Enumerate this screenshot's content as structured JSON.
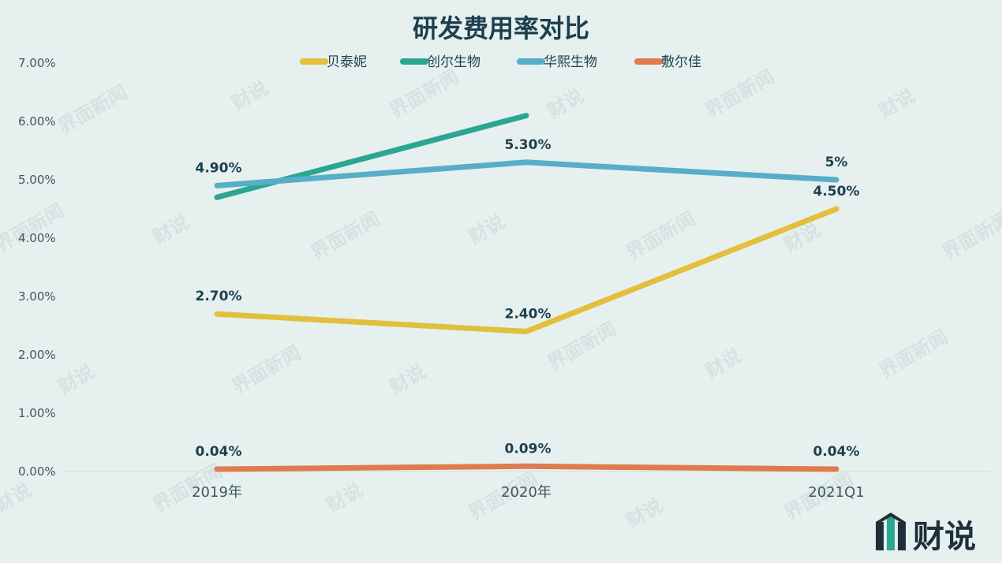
{
  "chart_data": {
    "type": "line",
    "title": "研发费用率对比",
    "categories": [
      "2019年",
      "2020年",
      "2021Q1"
    ],
    "ylim": [
      0,
      7
    ],
    "yticks": [
      "0.00%",
      "1.00%",
      "2.00%",
      "3.00%",
      "4.00%",
      "5.00%",
      "6.00%",
      "7.00%"
    ],
    "grid": false,
    "legend_position": "top-center",
    "series": [
      {
        "name": "贝泰妮",
        "color": "#e2bf3c",
        "values": [
          2.7,
          2.4,
          4.5
        ],
        "labels": [
          "2.70%",
          "2.40%",
          "4.50%"
        ]
      },
      {
        "name": "创尔生物",
        "color": "#2aa693",
        "values": [
          4.7,
          6.1,
          null
        ],
        "labels": [
          null,
          null,
          null
        ]
      },
      {
        "name": "华熙生物",
        "color": "#58aec8",
        "values": [
          4.9,
          5.3,
          5.0
        ],
        "labels": [
          "4.90%",
          "5.30%",
          "5%"
        ]
      },
      {
        "name": "敷尔佳",
        "color": "#e07b50",
        "values": [
          0.04,
          0.09,
          0.04
        ],
        "labels": [
          "0.04%",
          "0.09%",
          "0.04%"
        ]
      }
    ]
  },
  "watermark": {
    "text1": "界面新闻",
    "text2": "财说"
  },
  "logo": {
    "text": "财说",
    "color": "#2aa693"
  }
}
